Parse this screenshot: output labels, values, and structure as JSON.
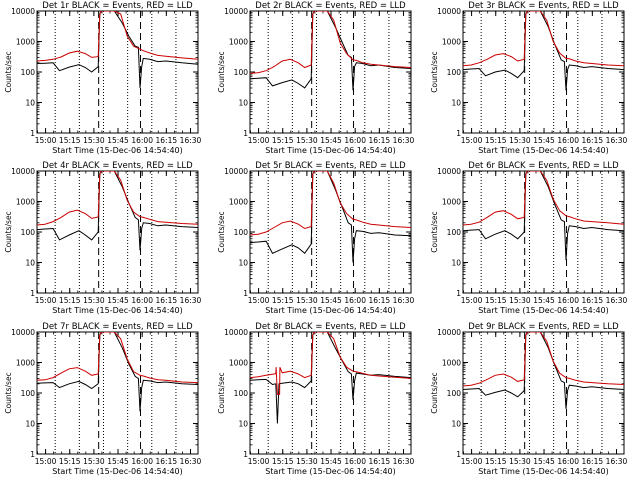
{
  "chart_data": {
    "type": "line",
    "x_tick_labels": [
      "15:00",
      "15:15",
      "15:30",
      "15:45",
      "16:00",
      "16:15",
      "16:30"
    ],
    "xlabel": "Start Time (15-Dec-06 14:54:40)",
    "ylabel": "Counts/sec",
    "y_tick_labels": [
      "1",
      "10",
      "100",
      "1000",
      "10000"
    ],
    "ylim": [
      1,
      10000
    ],
    "y_scale": "log",
    "x_range_minutes": [
      0,
      100
    ],
    "vertical_markers": {
      "dotted_minutes": [
        11.3,
        26.3,
        41.3,
        56.3,
        71.3,
        86.3
      ],
      "dashed_minutes": [
        38.3,
        64.3
      ]
    },
    "grid": false,
    "panels": [
      {
        "title": "Det 1r BLACK = Events, RED = LLD",
        "series": [
          {
            "color": "#000000",
            "x": [
              0,
              5,
              10,
              14,
              20,
              26,
              30,
              34,
              38,
              39,
              40,
              48,
              53,
              57,
              61,
              63,
              64,
              65,
              66,
              70,
              75,
              80,
              90,
              100
            ],
            "y": [
              190,
              195,
              200,
              110,
              145,
              175,
              140,
              100,
              150,
              8000,
              10000,
              10000,
              4000,
              1500,
              700,
              650,
              30,
              150,
              280,
              260,
              220,
              230,
              200,
              180
            ]
          },
          {
            "color": "#cc0000",
            "x": [
              0,
              5,
              10,
              15,
              20,
              25,
              30,
              34,
              38,
              39,
              40,
              48,
              52,
              56,
              60,
              64,
              66,
              70,
              75,
              80,
              90,
              100
            ],
            "y": [
              230,
              240,
              260,
              310,
              420,
              480,
              400,
              300,
              320,
              8000,
              10000,
              10000,
              8000,
              1500,
              700,
              560,
              500,
              420,
              350,
              330,
              290,
              260
            ]
          }
        ]
      },
      {
        "title": "Det 2r BLACK = Events, RED = LLD",
        "series": [
          {
            "color": "#000000",
            "x": [
              0,
              5,
              10,
              14,
              20,
              26,
              30,
              34,
              38,
              39,
              40,
              48,
              53,
              57,
              61,
              63,
              64,
              65,
              66,
              70,
              75,
              80,
              90,
              100
            ],
            "y": [
              60,
              62,
              65,
              35,
              45,
              55,
              42,
              30,
              60,
              8000,
              10000,
              10000,
              3000,
              1000,
              350,
              300,
              25,
              150,
              200,
              190,
              160,
              170,
              140,
              130
            ]
          },
          {
            "color": "#cc0000",
            "x": [
              0,
              5,
              10,
              15,
              20,
              25,
              30,
              34,
              38,
              39,
              40,
              48,
              52,
              56,
              60,
              64,
              66,
              70,
              75,
              80,
              90,
              100
            ],
            "y": [
              90,
              95,
              110,
              150,
              230,
              260,
              200,
              140,
              170,
              8000,
              10000,
              10000,
              5000,
              900,
              400,
              250,
              240,
              200,
              180,
              170,
              150,
              140
            ]
          }
        ]
      },
      {
        "title": "Det 3r BLACK = Events, RED = LLD",
        "series": [
          {
            "color": "#000000",
            "x": [
              0,
              5,
              10,
              14,
              20,
              26,
              30,
              34,
              38,
              39,
              40,
              48,
              53,
              57,
              61,
              63,
              64,
              65,
              66,
              70,
              75,
              80,
              90,
              100
            ],
            "y": [
              120,
              125,
              130,
              75,
              100,
              115,
              90,
              65,
              110,
              8000,
              10000,
              10000,
              3000,
              800,
              250,
              220,
              25,
              120,
              170,
              160,
              140,
              150,
              130,
              120
            ]
          },
          {
            "color": "#cc0000",
            "x": [
              0,
              5,
              10,
              15,
              20,
              25,
              30,
              34,
              38,
              39,
              40,
              48,
              52,
              56,
              60,
              64,
              66,
              70,
              75,
              80,
              90,
              100
            ],
            "y": [
              160,
              170,
              200,
              260,
              360,
              400,
              320,
              230,
              260,
              8000,
              10000,
              10000,
              5000,
              1000,
              420,
              280,
              270,
              230,
              200,
              190,
              170,
              160
            ]
          }
        ]
      },
      {
        "title": "Det 4r BLACK = Events, RED = LLD",
        "series": [
          {
            "color": "#000000",
            "x": [
              0,
              5,
              10,
              14,
              20,
              26,
              30,
              34,
              38,
              39,
              40,
              48,
              53,
              57,
              61,
              63,
              64,
              65,
              66,
              70,
              75,
              80,
              90,
              100
            ],
            "y": [
              120,
              125,
              130,
              55,
              80,
              110,
              80,
              55,
              100,
              8000,
              10000,
              10000,
              3000,
              900,
              300,
              250,
              25,
              130,
              200,
              190,
              160,
              170,
              150,
              140
            ]
          },
          {
            "color": "#cc0000",
            "x": [
              0,
              5,
              10,
              15,
              20,
              25,
              30,
              34,
              38,
              39,
              40,
              48,
              52,
              56,
              60,
              64,
              66,
              70,
              75,
              80,
              90,
              100
            ],
            "y": [
              170,
              180,
              220,
              300,
              450,
              520,
              400,
              280,
              310,
              8000,
              10000,
              10000,
              5000,
              1100,
              450,
              320,
              300,
              260,
              220,
              210,
              190,
              180
            ]
          }
        ]
      },
      {
        "title": "Det 5r BLACK = Events, RED = LLD",
        "series": [
          {
            "color": "#000000",
            "x": [
              0,
              5,
              10,
              14,
              20,
              26,
              30,
              34,
              38,
              39,
              40,
              48,
              53,
              57,
              61,
              63,
              64,
              65,
              66,
              70,
              75,
              80,
              90,
              100
            ],
            "y": [
              45,
              47,
              50,
              20,
              28,
              38,
              30,
              20,
              40,
              8000,
              10000,
              10000,
              2500,
              700,
              200,
              170,
              10,
              60,
              110,
              105,
              90,
              95,
              80,
              75
            ]
          },
          {
            "color": "#cc0000",
            "x": [
              0,
              5,
              10,
              15,
              20,
              25,
              30,
              34,
              38,
              39,
              40,
              48,
              52,
              56,
              60,
              64,
              66,
              70,
              75,
              80,
              90,
              100
            ],
            "y": [
              80,
              85,
              100,
              140,
              200,
              230,
              180,
              130,
              150,
              8000,
              10000,
              10000,
              4000,
              900,
              400,
              260,
              250,
              210,
              180,
              170,
              150,
              140
            ]
          }
        ]
      },
      {
        "title": "Det 6r BLACK = Events, RED = LLD",
        "series": [
          {
            "color": "#000000",
            "x": [
              0,
              5,
              10,
              14,
              20,
              26,
              30,
              34,
              38,
              39,
              40,
              48,
              53,
              57,
              61,
              63,
              64,
              65,
              66,
              70,
              75,
              80,
              90,
              100
            ],
            "y": [
              110,
              115,
              120,
              60,
              85,
              110,
              85,
              60,
              100,
              8000,
              10000,
              10000,
              3000,
              800,
              250,
              220,
              12,
              90,
              160,
              150,
              130,
              140,
              120,
              110
            ]
          },
          {
            "color": "#cc0000",
            "x": [
              0,
              5,
              10,
              15,
              20,
              25,
              30,
              34,
              38,
              39,
              40,
              48,
              52,
              56,
              60,
              64,
              66,
              70,
              75,
              80,
              90,
              100
            ],
            "y": [
              170,
              180,
              210,
              300,
              450,
              500,
              380,
              270,
              300,
              8000,
              10000,
              10000,
              5000,
              1200,
              500,
              340,
              320,
              270,
              230,
              220,
              200,
              180
            ]
          }
        ]
      },
      {
        "title": "Det 7r BLACK = Events, RED = LLD",
        "series": [
          {
            "color": "#000000",
            "x": [
              0,
              5,
              10,
              14,
              20,
              26,
              30,
              34,
              38,
              39,
              40,
              48,
              53,
              57,
              61,
              63,
              64,
              65,
              66,
              70,
              75,
              80,
              90,
              100
            ],
            "y": [
              210,
              215,
              220,
              150,
              200,
              240,
              190,
              140,
              200,
              8000,
              10000,
              10000,
              3000,
              900,
              350,
              300,
              25,
              150,
              260,
              250,
              220,
              230,
              200,
              190
            ]
          },
          {
            "color": "#cc0000",
            "x": [
              0,
              5,
              10,
              15,
              20,
              25,
              30,
              34,
              38,
              39,
              40,
              48,
              52,
              56,
              60,
              64,
              66,
              70,
              75,
              80,
              90,
              100
            ],
            "y": [
              260,
              270,
              320,
              450,
              620,
              680,
              520,
              380,
              420,
              8000,
              10000,
              10000,
              6000,
              1300,
              500,
              380,
              360,
              310,
              270,
              260,
              230,
              220
            ]
          }
        ]
      },
      {
        "title": "Det 8r BLACK = Events, RED = LLD",
        "series": [
          {
            "color": "#000000",
            "x": [
              0,
              5,
              10,
              14,
              16,
              17,
              18,
              20,
              26,
              30,
              34,
              38,
              39,
              40,
              48,
              53,
              57,
              61,
              63,
              64,
              65,
              66,
              70,
              75,
              80,
              90,
              100
            ],
            "y": [
              260,
              270,
              280,
              190,
              200,
              10,
              200,
              210,
              230,
              200,
              150,
              250,
              8000,
              10000,
              10000,
              3000,
              1200,
              500,
              420,
              60,
              250,
              450,
              420,
              380,
              400,
              350,
              320
            ]
          },
          {
            "color": "#cc0000",
            "x": [
              0,
              5,
              10,
              15,
              16,
              16.2,
              17,
              18.4,
              18.6,
              20,
              25,
              30,
              34,
              38,
              39,
              40,
              48,
              52,
              56,
              60,
              64,
              66,
              70,
              75,
              80,
              90,
              100
            ],
            "y": [
              320,
              340,
              380,
              420,
              430,
              700,
              90,
              90,
              700,
              460,
              520,
              420,
              320,
              380,
              8000,
              10000,
              10000,
              6000,
              1500,
              700,
              520,
              500,
              440,
              380,
              360,
              330,
              300
            ]
          }
        ]
      },
      {
        "title": "Det 9r BLACK = Events, RED = LLD",
        "series": [
          {
            "color": "#000000",
            "x": [
              0,
              5,
              10,
              14,
              20,
              26,
              30,
              34,
              38,
              39,
              40,
              48,
              53,
              57,
              61,
              63,
              64,
              65,
              66,
              70,
              75,
              80,
              90,
              100
            ],
            "y": [
              130,
              135,
              140,
              85,
              105,
              125,
              100,
              75,
              120,
              8000,
              10000,
              10000,
              3000,
              800,
              250,
              220,
              30,
              120,
              180,
              170,
              150,
              160,
              140,
              130
            ]
          },
          {
            "color": "#cc0000",
            "x": [
              0,
              5,
              10,
              15,
              20,
              25,
              30,
              34,
              38,
              39,
              40,
              48,
              52,
              56,
              60,
              64,
              66,
              70,
              75,
              80,
              90,
              100
            ],
            "y": [
              170,
              180,
              210,
              280,
              380,
              420,
              330,
              240,
              270,
              8000,
              10000,
              10000,
              5000,
              1100,
              450,
              320,
              300,
              260,
              230,
              220,
              200,
              190
            ]
          }
        ]
      }
    ]
  }
}
